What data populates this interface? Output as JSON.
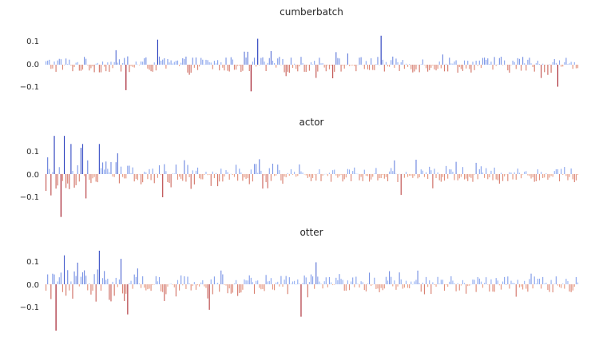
{
  "chart_data": [
    {
      "type": "bar",
      "title": "cumberbatch",
      "ylim": [
        -0.14,
        0.16
      ],
      "yticks": [
        0.1,
        0.0,
        -0.1
      ],
      "ytick_labels": [
        "0.1",
        "0.0",
        "−0.1"
      ],
      "n_bars": 320,
      "peaks": [
        {
          "index": 67,
          "value": 0.108
        },
        {
          "index": 127,
          "value": 0.112
        },
        {
          "index": 201,
          "value": 0.125
        },
        {
          "index": 48,
          "value": -0.11
        },
        {
          "index": 123,
          "value": -0.115
        },
        {
          "index": 307,
          "value": -0.095
        }
      ],
      "values": []
    },
    {
      "type": "bar",
      "title": "actor",
      "ylim": [
        -0.2,
        0.16
      ],
      "yticks": [
        0.1,
        0.0,
        -0.1
      ],
      "ytick_labels": [
        "0.1",
        "0.0",
        "−0.1"
      ],
      "n_bars": 320,
      "peaks": [
        {
          "index": 5,
          "value": 0.165
        },
        {
          "index": 11,
          "value": 0.165
        },
        {
          "index": 15,
          "value": 0.13
        },
        {
          "index": 22,
          "value": 0.13
        },
        {
          "index": 32,
          "value": 0.13
        },
        {
          "index": 43,
          "value": 0.09
        },
        {
          "index": 9,
          "value": -0.185
        },
        {
          "index": 24,
          "value": -0.105
        },
        {
          "index": 70,
          "value": -0.1
        },
        {
          "index": 213,
          "value": -0.09
        }
      ],
      "values": []
    },
    {
      "type": "bar",
      "title": "otter",
      "ylim": [
        -0.2,
        0.16
      ],
      "yticks": [
        0.1,
        0.0,
        -0.1
      ],
      "ytick_labels": [
        "0.1",
        "0.0",
        "−0.1"
      ],
      "n_bars": 320,
      "peaks": [
        {
          "index": 11,
          "value": 0.125
        },
        {
          "index": 32,
          "value": 0.145
        },
        {
          "index": 45,
          "value": 0.11
        },
        {
          "index": 162,
          "value": 0.095
        },
        {
          "index": 6,
          "value": -0.2
        },
        {
          "index": 49,
          "value": -0.13
        },
        {
          "index": 98,
          "value": -0.11
        },
        {
          "index": 153,
          "value": -0.14
        }
      ],
      "values": []
    }
  ]
}
